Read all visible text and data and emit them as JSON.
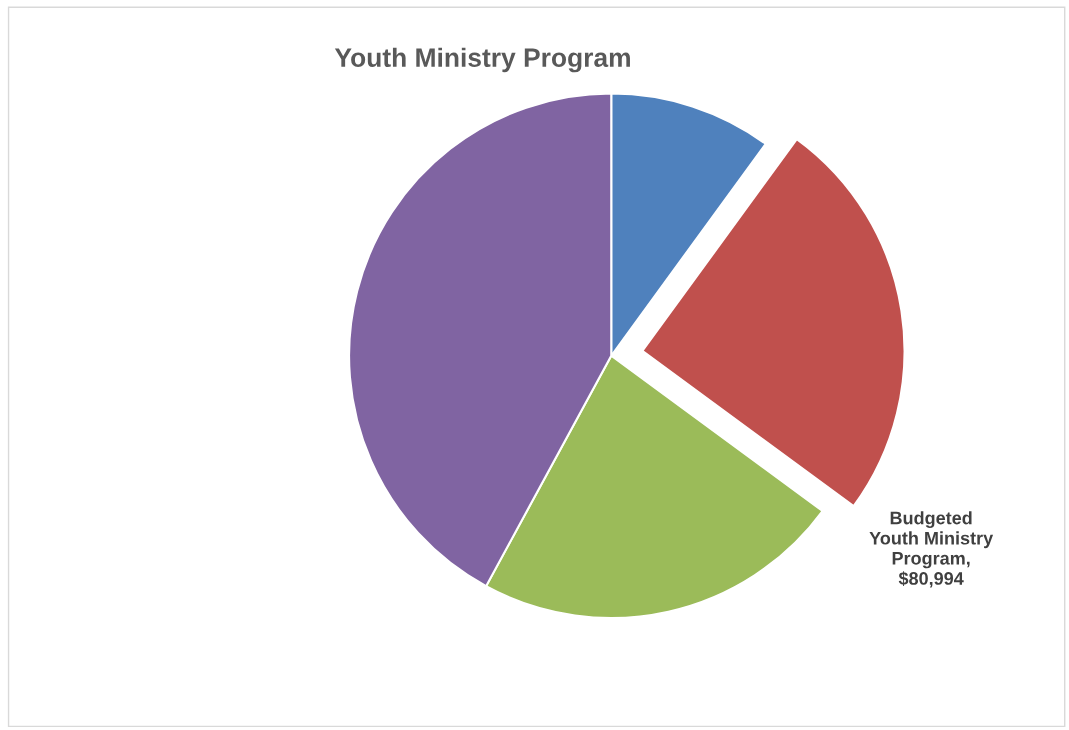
{
  "chart_data": {
    "type": "pie",
    "title": "Youth Ministry Program",
    "categories": [
      null,
      null,
      null,
      null
    ],
    "values": [
      32400,
      80994,
      73800,
      136000
    ],
    "value_labels": [
      null,
      "Budgeted Youth Ministry Program, $80,994",
      null,
      null
    ],
    "colors": [
      "#4f81bd",
      "#c0504d",
      "#9bbb59",
      "#8064a2"
    ],
    "legend": false
  }
}
